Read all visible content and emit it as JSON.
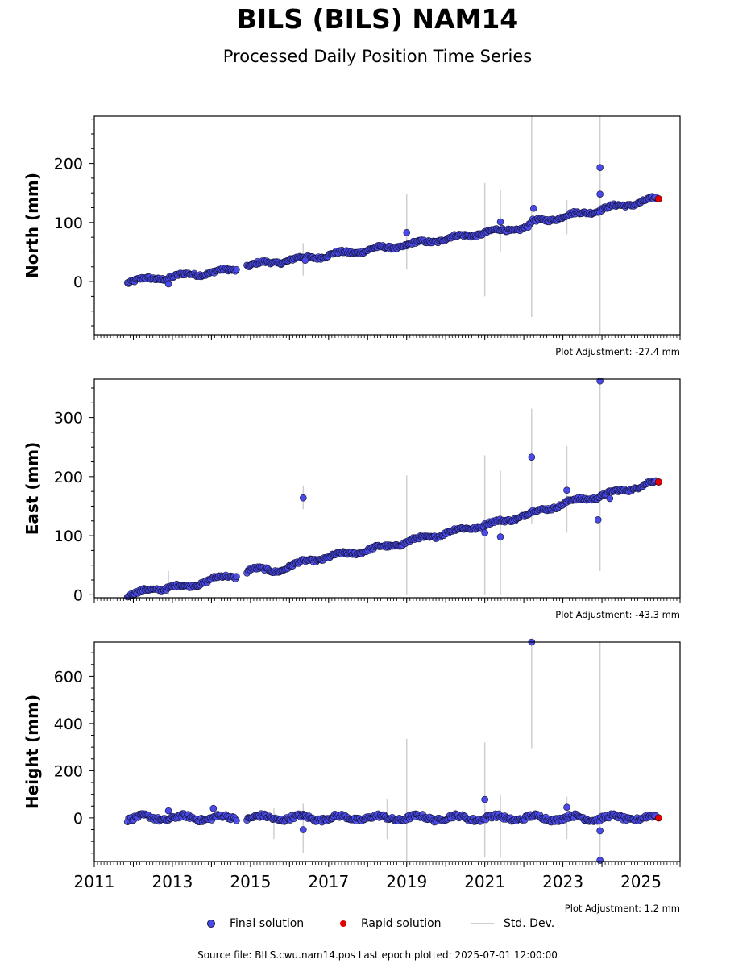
{
  "title": "BILS (BILS) NAM14",
  "subtitle": "Processed Daily Position Time Series",
  "footer": "Source file: BILS.cwu.nam14.pos  Last epoch plotted: 2025-07-01 12:00:00",
  "legend": {
    "final": "Final solution",
    "rapid": "Rapid solution",
    "std": "Std. Dev."
  },
  "colors": {
    "final": "#4a4aea",
    "final_edge": "#111133",
    "rapid": "#e00000",
    "std": "#cfcfcf",
    "std_dark": "#8a8a8a"
  },
  "chart_data": [
    {
      "type": "scatter",
      "ylabel": "North (mm)",
      "xlim": [
        2011,
        2026
      ],
      "ylim": [
        -90,
        280
      ],
      "yticks": [
        0,
        100,
        200
      ],
      "xticks": [
        2011,
        2013,
        2015,
        2017,
        2019,
        2021,
        2023,
        2025
      ],
      "adjustment": "Plot Adjustment: -27.4 mm",
      "series": [
        {
          "name": "Final solution",
          "trend": [
            [
              2011.85,
              0
            ],
            [
              2014.6,
              20
            ],
            [
              2014.9,
              27
            ],
            [
              2017.0,
              45
            ],
            [
              2019.0,
              62
            ],
            [
              2021.0,
              83
            ],
            [
              2022.1,
              92
            ],
            [
              2022.2,
              100
            ],
            [
              2025.4,
              140
            ]
          ],
          "gaps": [
            [
              2014.65,
              2014.9
            ]
          ],
          "outliers": [
            [
              2012.9,
              -4
            ],
            [
              2016.4,
              36
            ],
            [
              2019.0,
              83
            ],
            [
              2021.4,
              101
            ],
            [
              2022.25,
              124
            ],
            [
              2023.95,
              148
            ],
            [
              2023.95,
              193
            ]
          ]
        },
        {
          "name": "Rapid solution",
          "points": [
            [
              2025.45,
              140
            ]
          ]
        }
      ],
      "std_dev_bars": [
        [
          2016.35,
          10,
          65
        ],
        [
          2019.0,
          20,
          148
        ],
        [
          2021.0,
          -25,
          167
        ],
        [
          2021.4,
          50,
          155
        ],
        [
          2022.2,
          -60,
          280
        ],
        [
          2023.1,
          80,
          138
        ],
        [
          2023.95,
          -90,
          280
        ],
        [
          2023.95,
          92,
          190
        ]
      ]
    },
    {
      "type": "scatter",
      "ylabel": "East (mm)",
      "xlim": [
        2011,
        2026
      ],
      "ylim": [
        -5,
        365
      ],
      "yticks": [
        0,
        100,
        200,
        300
      ],
      "xticks": [
        2011,
        2013,
        2015,
        2017,
        2019,
        2021,
        2023,
        2025
      ],
      "adjustment": "Plot Adjustment: -43.3 mm",
      "series": [
        {
          "name": "Final solution",
          "trend": [
            [
              2011.85,
              0
            ],
            [
              2013.0,
              15
            ],
            [
              2013.4,
              12
            ],
            [
              2014.0,
              28
            ],
            [
              2014.6,
              30
            ],
            [
              2015.0,
              44
            ],
            [
              2015.6,
              40
            ],
            [
              2016.5,
              58
            ],
            [
              2017.5,
              70
            ],
            [
              2018.5,
              82
            ],
            [
              2019.5,
              97
            ],
            [
              2020.5,
              112
            ],
            [
              2021.5,
              125
            ],
            [
              2022.3,
              140
            ],
            [
              2023.2,
              158
            ],
            [
              2024.0,
              168
            ],
            [
              2025.4,
              191
            ]
          ],
          "gaps": [
            [
              2014.65,
              2014.9
            ]
          ],
          "outliers": [
            [
              2016.35,
              164
            ],
            [
              2021.0,
              105
            ],
            [
              2021.4,
              98
            ],
            [
              2022.2,
              233
            ],
            [
              2023.1,
              177
            ],
            [
              2023.9,
              127
            ],
            [
              2023.95,
              362
            ],
            [
              2024.2,
              163
            ]
          ]
        },
        {
          "name": "Rapid solution",
          "points": [
            [
              2025.45,
              191
            ]
          ]
        }
      ],
      "std_dev_bars": [
        [
          2012.9,
          0,
          40
        ],
        [
          2016.35,
          145,
          185
        ],
        [
          2019.0,
          0,
          202
        ],
        [
          2021.0,
          0,
          236
        ],
        [
          2021.4,
          0,
          210
        ],
        [
          2022.2,
          120,
          315
        ],
        [
          2023.1,
          105,
          252
        ],
        [
          2023.95,
          40,
          365
        ]
      ]
    },
    {
      "type": "scatter",
      "ylabel": "Height (mm)",
      "xlim": [
        2011,
        2026
      ],
      "ylim": [
        -185,
        745
      ],
      "yticks": [
        0,
        200,
        400,
        600
      ],
      "xticks": [
        2011,
        2013,
        2015,
        2017,
        2019,
        2021,
        2023,
        2025
      ],
      "adjustment": "Plot Adjustment: 1.2 mm",
      "series": [
        {
          "name": "Final solution",
          "trend": [
            [
              2011.85,
              0
            ],
            [
              2025.4,
              0
            ]
          ],
          "gaps": [
            [
              2014.65,
              2014.9
            ]
          ],
          "outliers": [
            [
              2012.9,
              30
            ],
            [
              2014.05,
              40
            ],
            [
              2016.35,
              -50
            ],
            [
              2021.0,
              78
            ],
            [
              2022.2,
              745
            ],
            [
              2023.1,
              45
            ],
            [
              2023.95,
              -55
            ],
            [
              2023.95,
              -180
            ]
          ]
        },
        {
          "name": "Rapid solution",
          "points": [
            [
              2025.45,
              0
            ]
          ]
        }
      ],
      "std_dev_bars": [
        [
          2015.6,
          -90,
          40
        ],
        [
          2016.35,
          -150,
          60
        ],
        [
          2018.5,
          -90,
          80
        ],
        [
          2019.0,
          -185,
          335
        ],
        [
          2021.0,
          -165,
          320
        ],
        [
          2021.4,
          -170,
          100
        ],
        [
          2022.2,
          295,
          745
        ],
        [
          2023.1,
          -90,
          90
        ],
        [
          2023.95,
          -185,
          745
        ]
      ]
    }
  ]
}
